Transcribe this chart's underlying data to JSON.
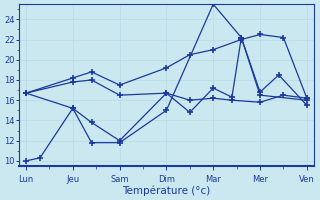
{
  "xlabel": "Température (°c)",
  "background_color": "#cbe8f0",
  "grid_color": "#b8dde8",
  "line_color": "#1a3a9c",
  "ylim": [
    9.5,
    25.5
  ],
  "yticks": [
    10,
    12,
    14,
    16,
    18,
    20,
    22,
    24
  ],
  "xtick_labels": [
    "Lun",
    "Jeu",
    "Sam",
    "Dim",
    "Mar",
    "Mer",
    "Ven"
  ],
  "n_days": 7,
  "series": [
    {
      "x": [
        0.0,
        0.3,
        1.0,
        1.4,
        2.0,
        3.0,
        4.0,
        4.6,
        5.0,
        6.0
      ],
      "y": [
        10.0,
        10.3,
        15.2,
        11.8,
        11.8,
        15.0,
        25.5,
        22.2,
        16.5,
        16.0
      ]
    },
    {
      "x": [
        0.0,
        1.0,
        1.4,
        2.0,
        3.0,
        3.5,
        4.0,
        4.4,
        4.6,
        5.0,
        5.4,
        6.0
      ],
      "y": [
        16.7,
        15.2,
        13.8,
        12.0,
        16.7,
        14.8,
        17.2,
        16.3,
        22.2,
        16.8,
        18.5,
        15.5
      ]
    },
    {
      "x": [
        0.0,
        1.0,
        1.4,
        2.0,
        3.0,
        3.5,
        4.0,
        4.4,
        5.0,
        5.5,
        6.0
      ],
      "y": [
        16.7,
        17.8,
        18.0,
        16.5,
        16.7,
        16.0,
        16.2,
        16.0,
        15.8,
        16.5,
        16.2
      ]
    },
    {
      "x": [
        0.0,
        1.0,
        1.4,
        2.0,
        3.0,
        3.5,
        4.0,
        4.6,
        5.0,
        5.5,
        6.0
      ],
      "y": [
        16.7,
        18.2,
        18.8,
        17.5,
        19.2,
        20.5,
        21.0,
        22.0,
        22.5,
        22.2,
        16.2
      ]
    }
  ]
}
